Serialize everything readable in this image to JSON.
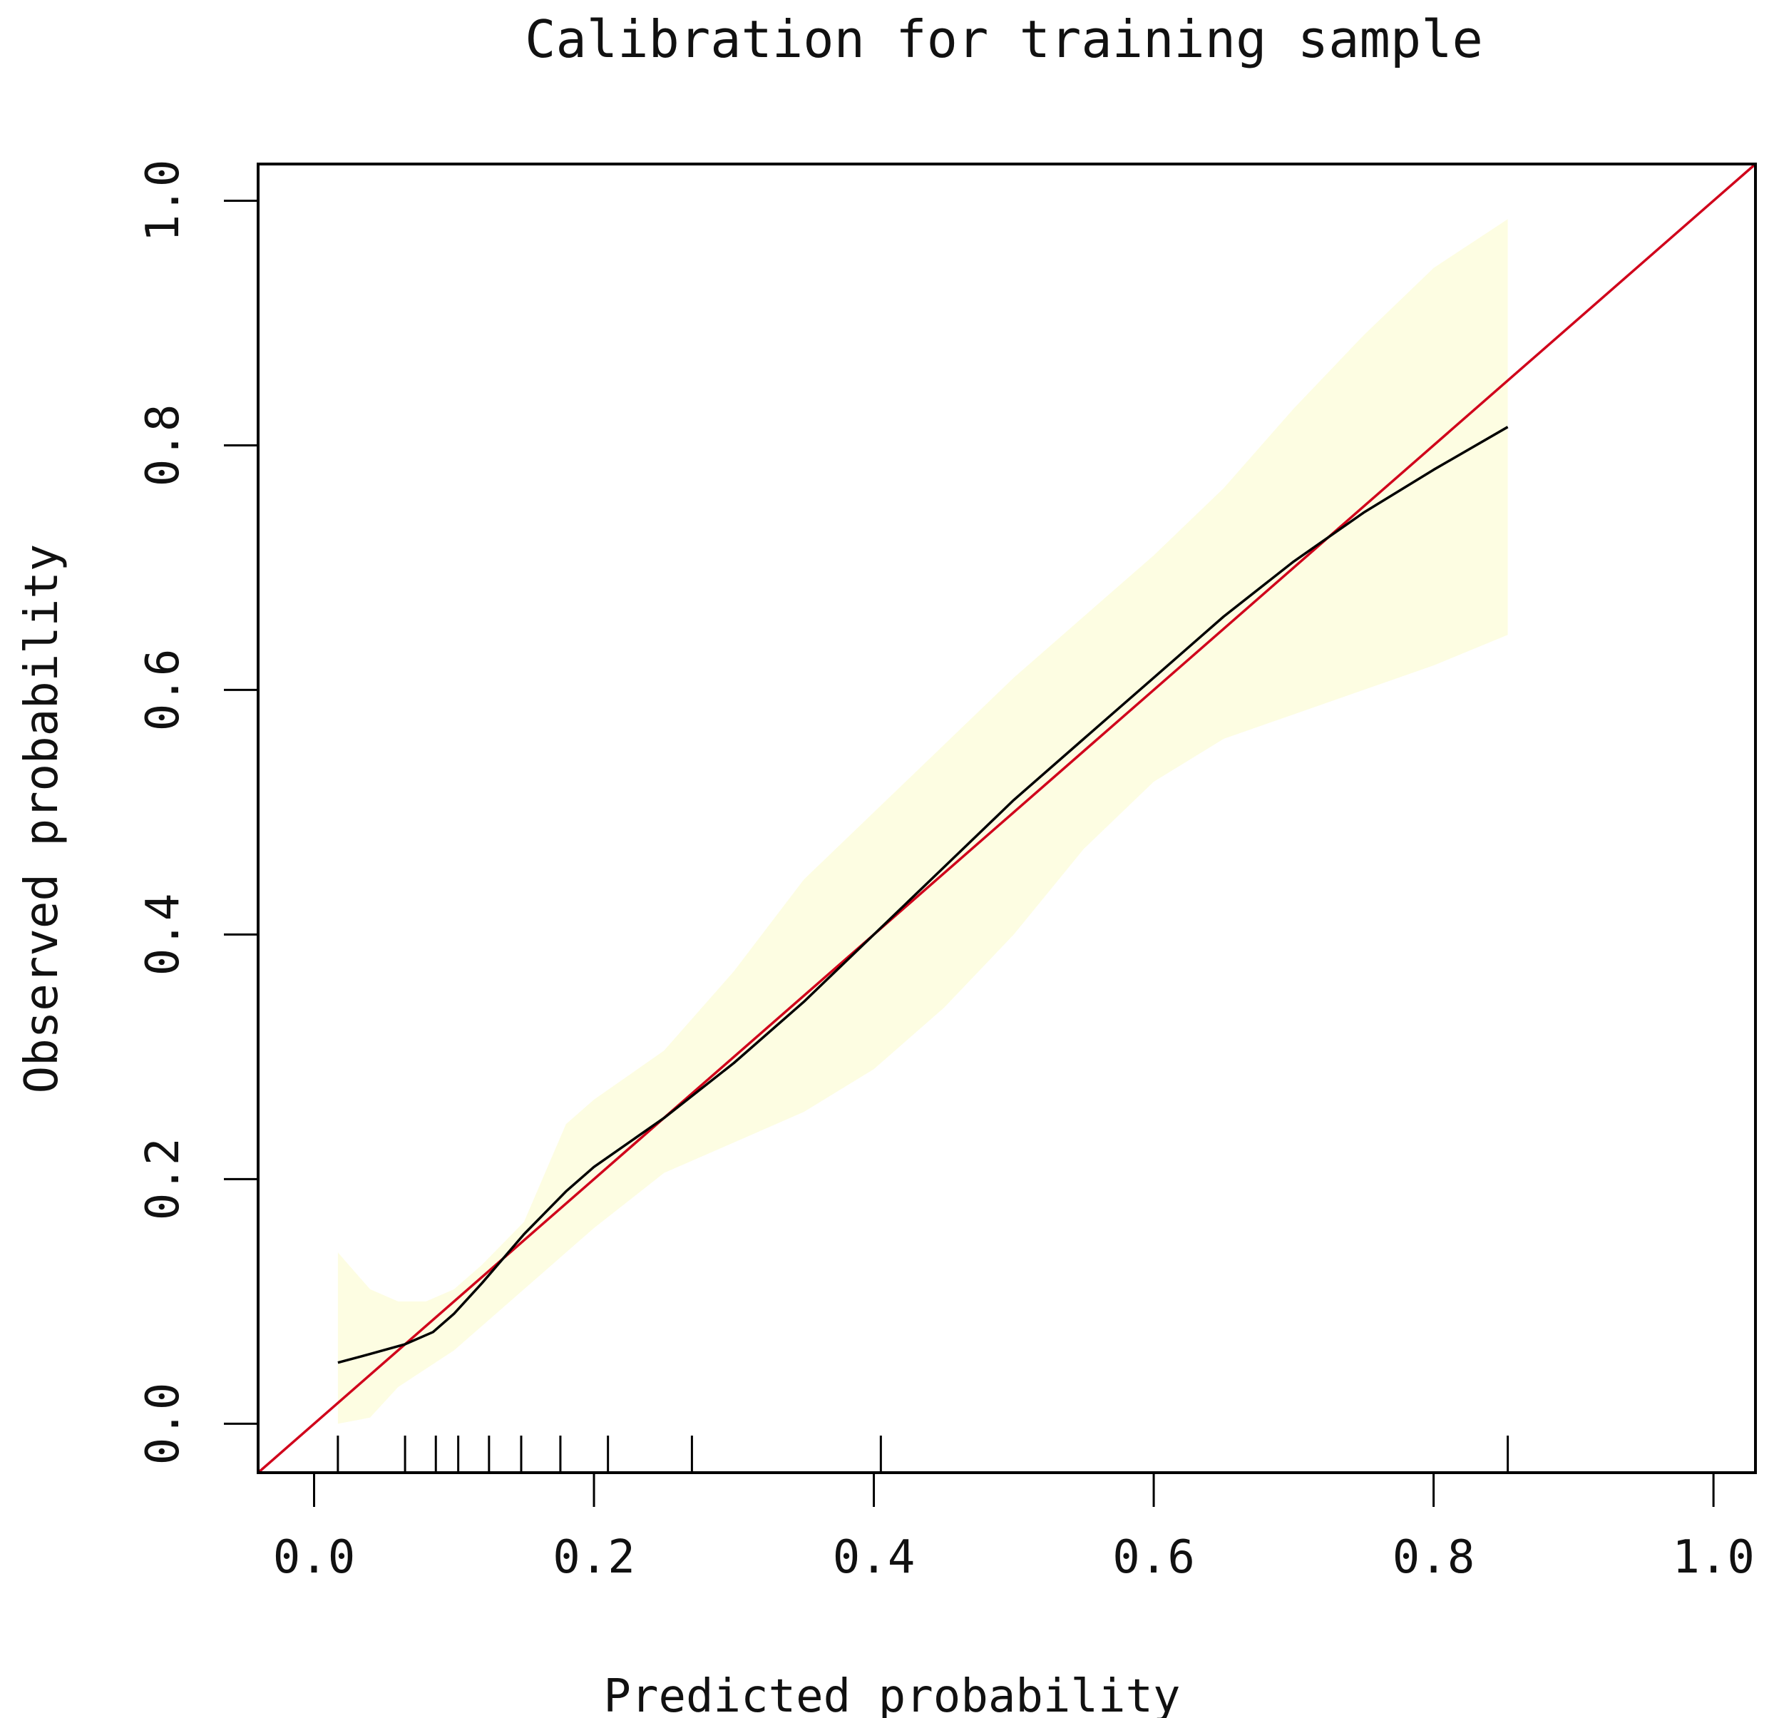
{
  "chart_data": {
    "type": "line",
    "title": "Calibration for training sample",
    "xlabel": "Predicted probability",
    "ylabel": "Observed probability",
    "xlim": [
      -0.04,
      1.03
    ],
    "ylim": [
      -0.04,
      1.03
    ],
    "grid": false,
    "legend": "none",
    "x_ticks": [
      {
        "value": 0.0,
        "label": "0.0"
      },
      {
        "value": 0.2,
        "label": "0.2"
      },
      {
        "value": 0.4,
        "label": "0.4"
      },
      {
        "value": 0.6,
        "label": "0.6"
      },
      {
        "value": 0.8,
        "label": "0.8"
      },
      {
        "value": 1.0,
        "label": "1.0"
      }
    ],
    "y_ticks": [
      {
        "value": 0.0,
        "label": "0.0"
      },
      {
        "value": 0.2,
        "label": "0.2"
      },
      {
        "value": 0.4,
        "label": "0.4"
      },
      {
        "value": 0.6,
        "label": "0.6"
      },
      {
        "value": 0.8,
        "label": "0.8"
      },
      {
        "value": 1.0,
        "label": "1.0"
      }
    ],
    "reference_line": {
      "x": [
        -0.04,
        1.03
      ],
      "y": [
        -0.04,
        1.03
      ],
      "color": "#d0021b"
    },
    "calibration_curve": {
      "color": "#000000",
      "x": [
        0.017,
        0.04,
        0.065,
        0.085,
        0.1,
        0.12,
        0.15,
        0.18,
        0.2,
        0.25,
        0.3,
        0.35,
        0.4,
        0.45,
        0.5,
        0.55,
        0.6,
        0.65,
        0.7,
        0.75,
        0.8,
        0.853
      ],
      "y": [
        0.05,
        0.057,
        0.065,
        0.075,
        0.09,
        0.115,
        0.155,
        0.19,
        0.21,
        0.25,
        0.295,
        0.345,
        0.4,
        0.455,
        0.51,
        0.56,
        0.61,
        0.66,
        0.705,
        0.745,
        0.78,
        0.815
      ]
    },
    "confidence_band": {
      "color": "#fdfde2",
      "x": [
        0.017,
        0.04,
        0.06,
        0.08,
        0.1,
        0.12,
        0.15,
        0.18,
        0.2,
        0.25,
        0.3,
        0.35,
        0.4,
        0.45,
        0.5,
        0.55,
        0.6,
        0.65,
        0.7,
        0.75,
        0.8,
        0.853
      ],
      "lower": [
        0.0,
        0.005,
        0.03,
        0.045,
        0.06,
        0.08,
        0.11,
        0.14,
        0.16,
        0.205,
        0.23,
        0.255,
        0.29,
        0.34,
        0.4,
        0.47,
        0.525,
        0.56,
        0.58,
        0.6,
        0.62,
        0.645
      ],
      "upper": [
        0.14,
        0.11,
        0.1,
        0.1,
        0.11,
        0.13,
        0.165,
        0.245,
        0.265,
        0.305,
        0.37,
        0.445,
        0.5,
        0.555,
        0.61,
        0.66,
        0.71,
        0.765,
        0.83,
        0.89,
        0.945,
        0.985
      ]
    },
    "rug_ticks": [
      0.017,
      0.065,
      0.087,
      0.103,
      0.125,
      0.148,
      0.176,
      0.21,
      0.27,
      0.405,
      0.853
    ]
  }
}
